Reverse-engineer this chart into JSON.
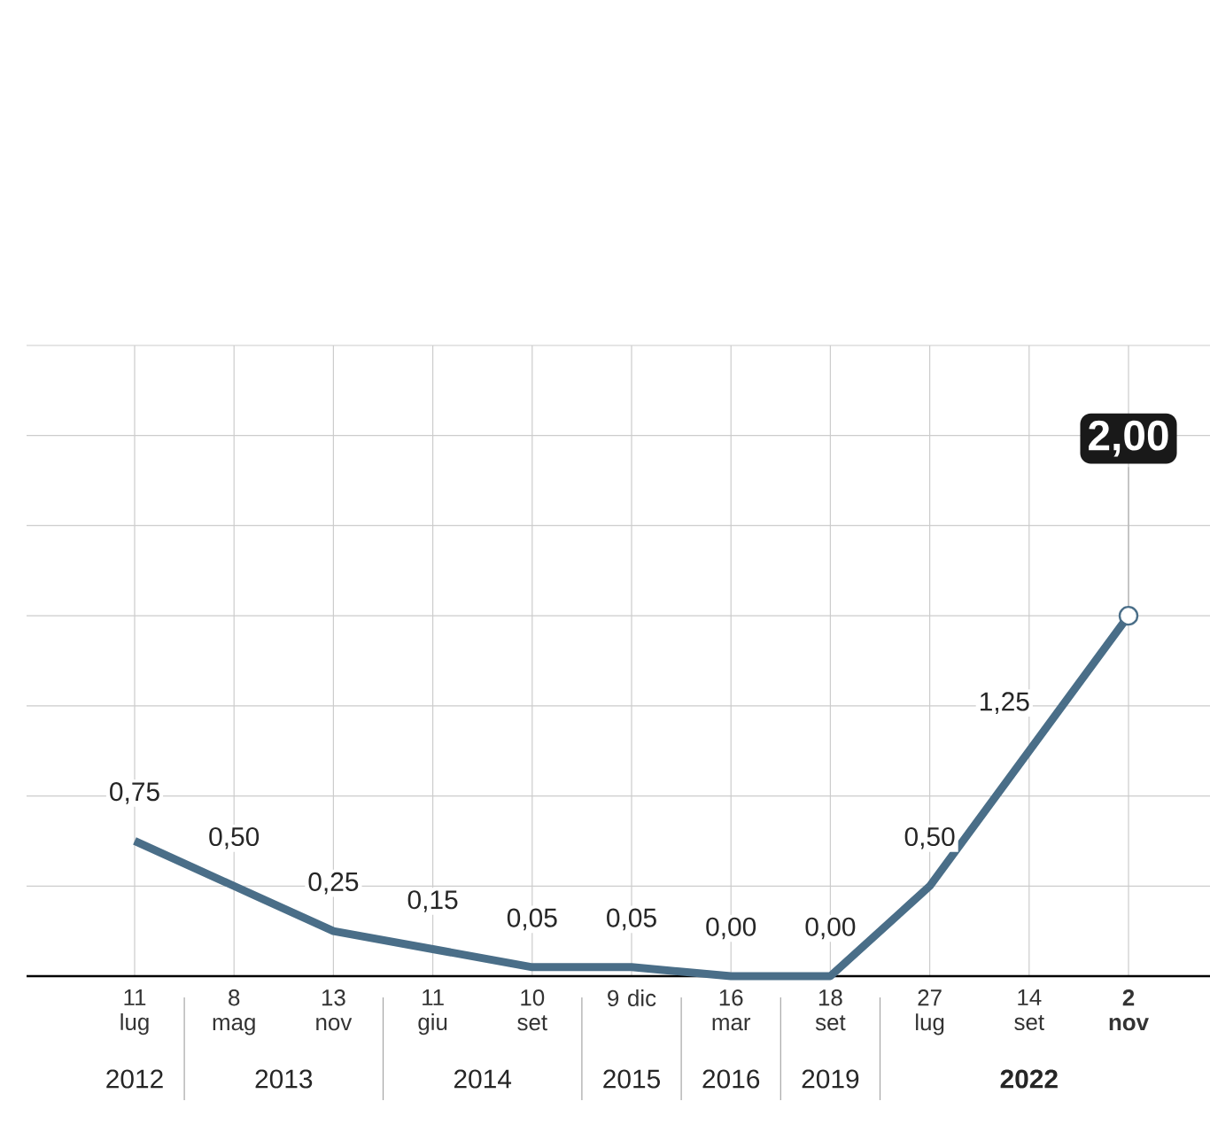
{
  "chart_data": {
    "type": "line",
    "color": "#4a6e88",
    "categories": [
      "11 lug",
      "8 mag",
      "13 nov",
      "11 giu",
      "10 set",
      "9 dic",
      "16 mar",
      "18 set",
      "27 lug",
      "14 set",
      "2 nov"
    ],
    "values": [
      0.75,
      0.5,
      0.25,
      0.15,
      0.05,
      0.05,
      0.0,
      0.0,
      0.5,
      1.25,
      2.0
    ],
    "ylim": [
      0,
      3.5
    ],
    "yticks": [
      {
        "value": 0,
        "label": null
      },
      {
        "value": 0.5,
        "label": null
      },
      {
        "value": 1,
        "label": null
      },
      {
        "value": 1.5,
        "label": null
      },
      {
        "value": 2,
        "label": null
      },
      {
        "value": 2.5,
        "label": null
      },
      {
        "value": 3,
        "label": null
      },
      {
        "value": 3.5,
        "label": null
      }
    ],
    "grid": true,
    "value_labels": [
      "0,75",
      "0,50",
      "0,25",
      "0,15",
      "0,05",
      "0,05",
      "0,00",
      "0,00",
      "0,50",
      "1,25",
      "2,00"
    ],
    "marker": "none",
    "line_style": "solid",
    "annotations": [
      "2012",
      "2013",
      "2014",
      "2015",
      "2016",
      "2019",
      "2022"
    ]
  }
}
